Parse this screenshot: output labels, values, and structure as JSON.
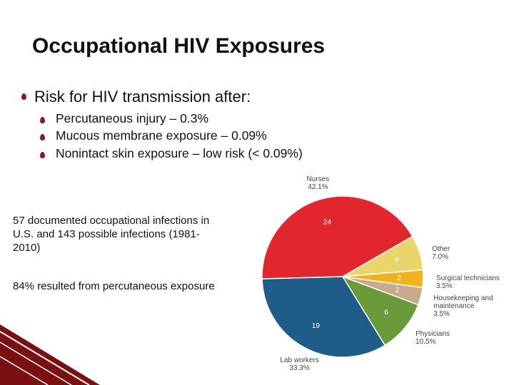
{
  "slide": {
    "title": "Occupational HIV Exposures",
    "bullet": "Risk for HIV transmission after:",
    "sub_bullets": [
      "Percutaneous injury – 0.3%",
      "Mucous membrane exposure – 0.09%",
      "Nonintact skin exposure – low risk (< 0.09%)"
    ],
    "notes": [
      "57 documented occupational infections in U.S. and 143 possible infections (1981-2010)",
      "84% resulted from percutaneous exposure"
    ]
  },
  "chart_data": {
    "type": "pie",
    "categories": [
      "Nurses",
      "Other",
      "Surgical technicians",
      "Housekeeping and maintenance",
      "Physicians",
      "Lab workers"
    ],
    "values": [
      24,
      4,
      2,
      2,
      6,
      19
    ],
    "percent_labels": [
      "42.1%",
      "7.0%",
      "3.5%",
      "3.5%",
      "10.5%",
      "33.3%"
    ],
    "colors": [
      "#e1272d",
      "#e9d66b",
      "#f0b21d",
      "#c9a98a",
      "#6b9a3a",
      "#1f5d89"
    ]
  }
}
